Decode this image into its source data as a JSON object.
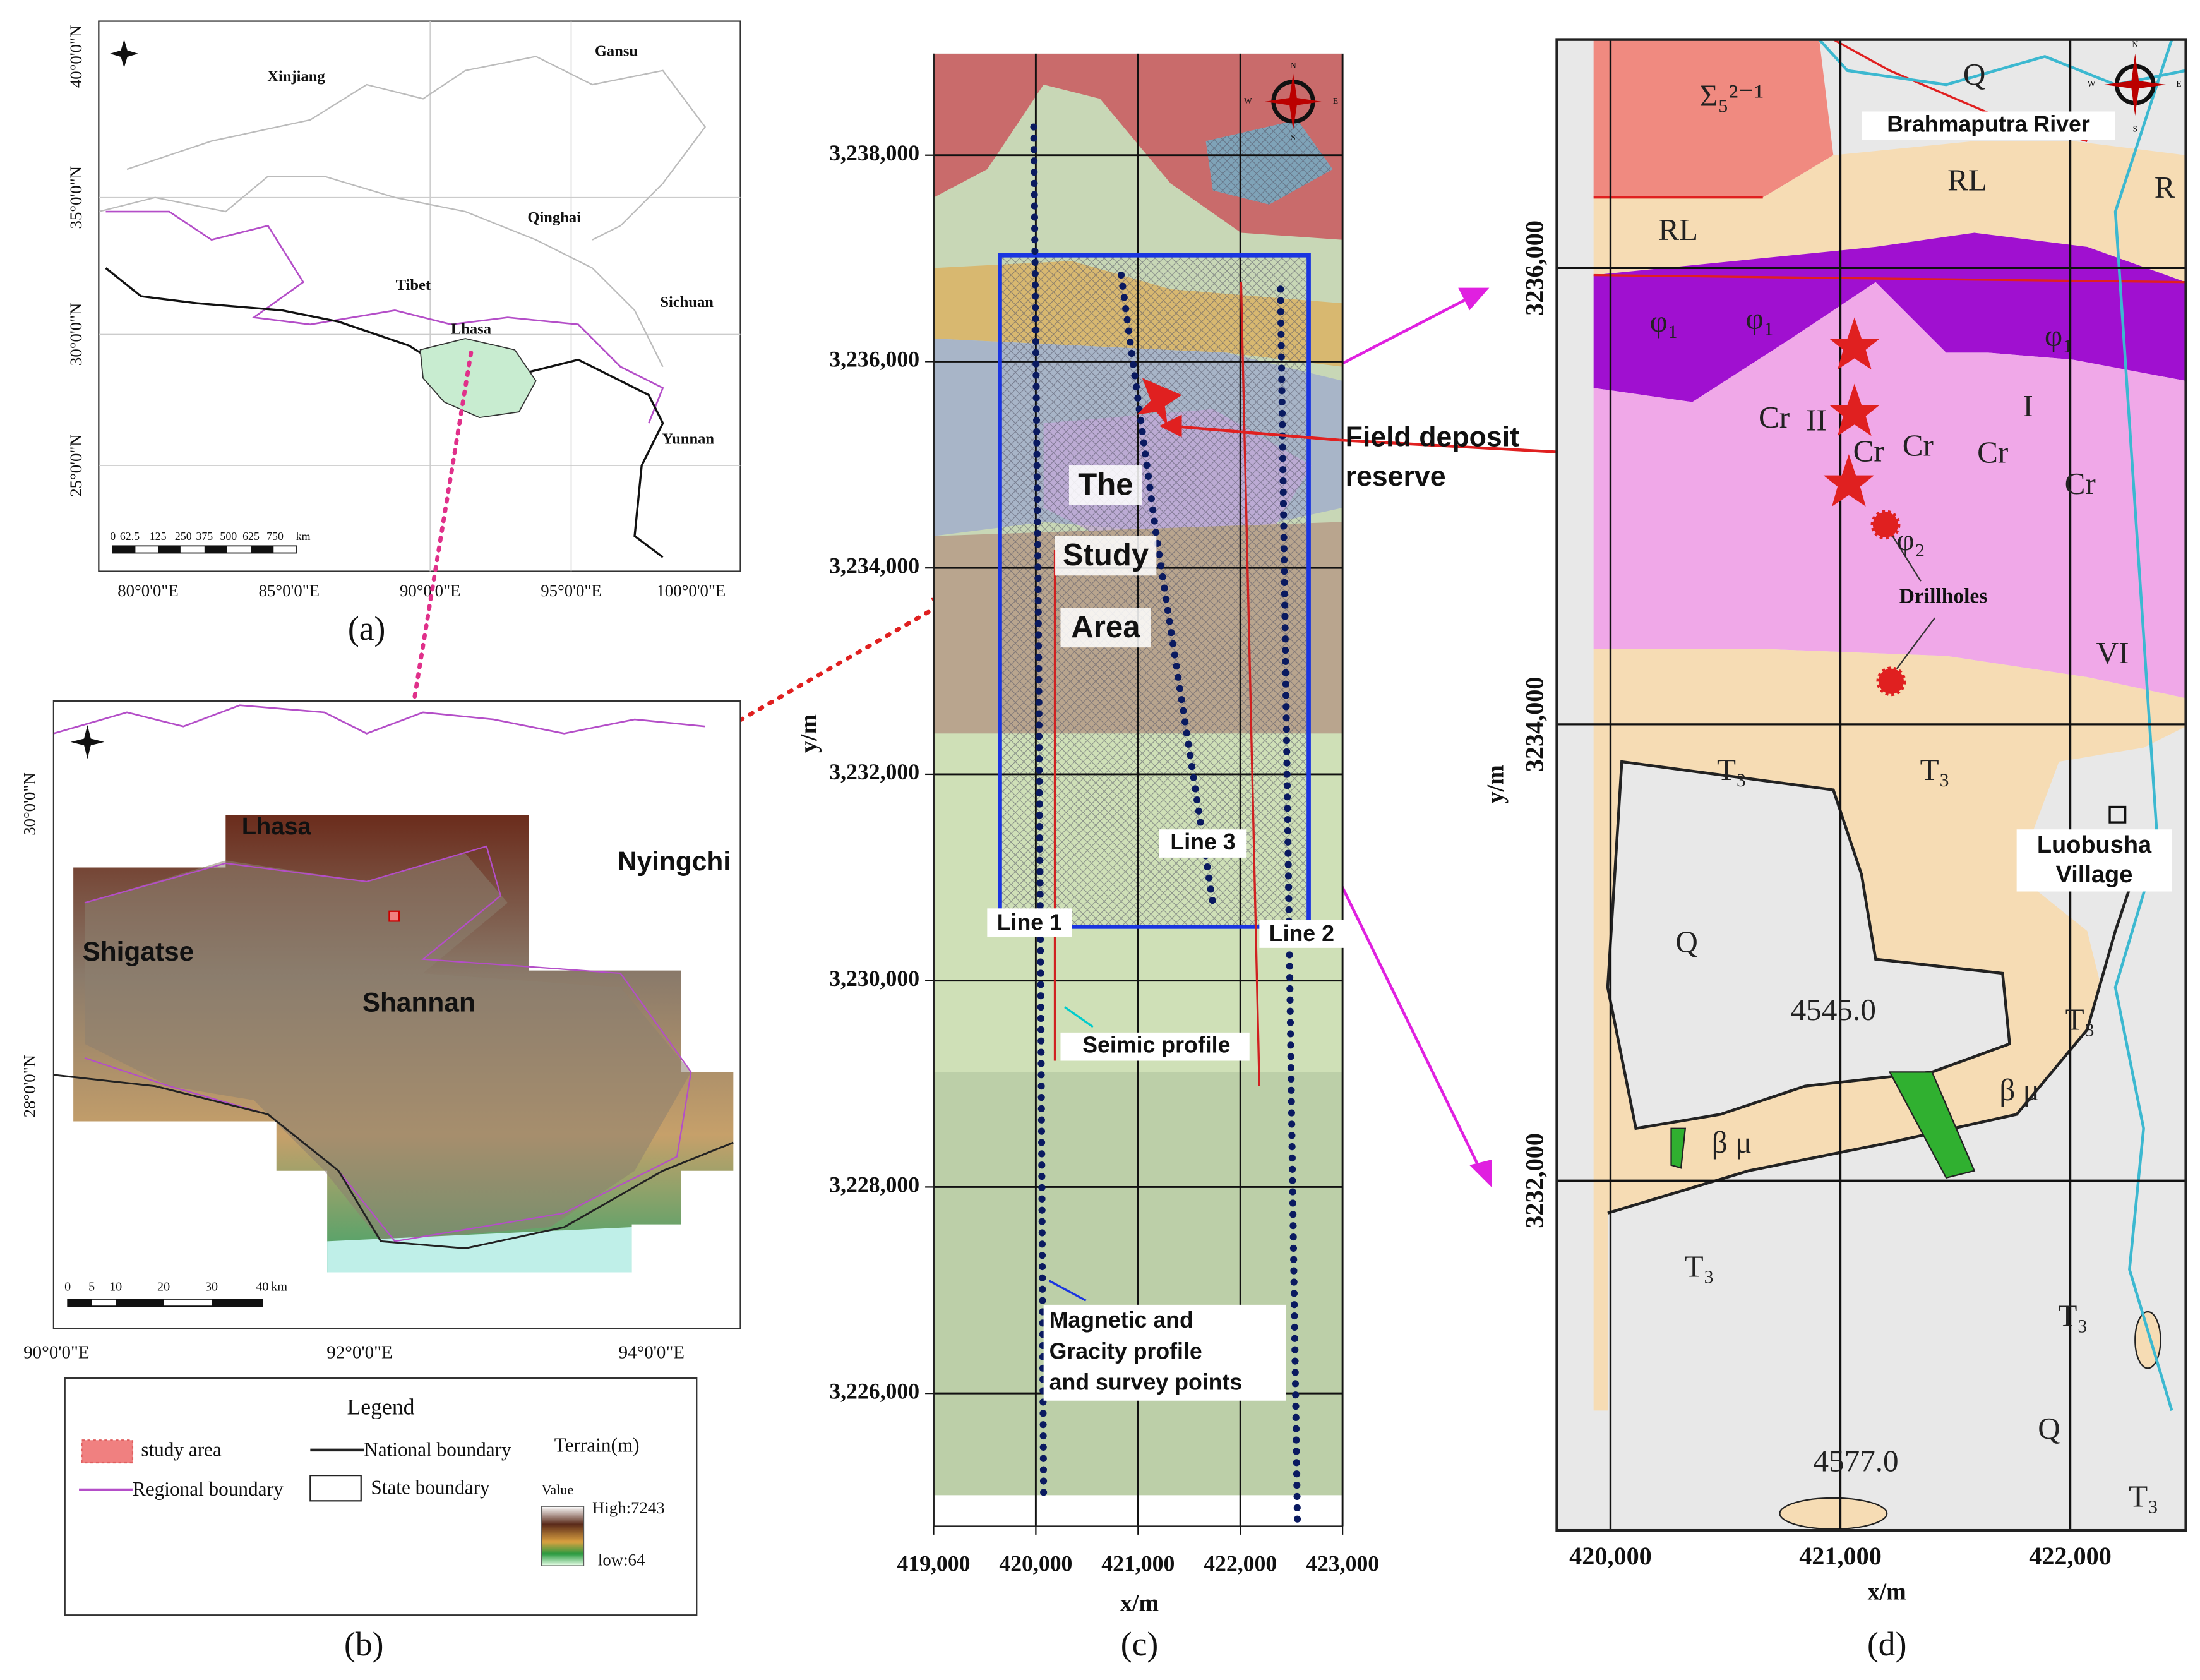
{
  "panel_a": {
    "caption": "(a)",
    "latitude_labels": [
      "40°0'0\"N",
      "35°0'0\"N",
      "30°0'0\"N",
      "25°0'0\"N"
    ],
    "longitude_labels": [
      "80°0'0\"E",
      "85°0'0\"E",
      "90°0'0\"E",
      "95°0'0\"E",
      "100°0'0\"E"
    ],
    "places": [
      "Xinjiang",
      "Gansu",
      "Qinghai",
      "Tibet",
      "Lhasa",
      "Sichuan",
      "Yunnan"
    ],
    "scale_bar": [
      "0",
      "62.5",
      "125",
      "250",
      "375",
      "500",
      "625",
      "750",
      "km"
    ]
  },
  "panel_b": {
    "caption": "(b)",
    "latitude_labels": [
      "30°0'0\"N",
      "28°0'0\"N"
    ],
    "longitude_labels": [
      "90°0'0\"E",
      "92°0'0\"E",
      "94°0'0\"E"
    ],
    "places": [
      "Lhasa",
      "Nyingchi",
      "Shigatse",
      "Shannan"
    ],
    "scale_bar": [
      "0",
      "5",
      "10",
      "20",
      "30",
      "40",
      "km"
    ],
    "legend": {
      "title": "Legend",
      "study_area": "study  area",
      "national_boundary": "National  boundary",
      "terrain": "Terrain(m)",
      "regional_boundary": "Regional  boundary",
      "state_boundary": "State  boundary",
      "value": "Value",
      "high": "High:7243",
      "low": "low:64"
    }
  },
  "panel_c": {
    "caption": "(c)",
    "x_label": "x/m",
    "y_label": "y/m",
    "x_ticks": [
      "419,000",
      "420,000",
      "421,000",
      "422,000",
      "423,000"
    ],
    "y_ticks": [
      "3,238,000",
      "3,236,000",
      "3,234,000",
      "3,232,000",
      "3,230,000",
      "3,228,000",
      "3,226,000"
    ],
    "study_area": [
      "The",
      "Study",
      "Area"
    ],
    "lines": [
      "Line 1",
      "Line 2",
      "Line 3"
    ],
    "seismic": "Seimic profile",
    "survey": [
      "Magnetic and",
      "Gracity profile",
      "and survey points"
    ],
    "deposit": [
      "Field deposit",
      "reserve"
    ],
    "compass": [
      "N",
      "W",
      "E",
      "S"
    ]
  },
  "panel_d": {
    "caption": "(d)",
    "x_label": "x/m",
    "y_label": "y/m",
    "x_ticks": [
      "420,000",
      "421,000",
      "422,000"
    ],
    "y_ticks": [
      "3236,000",
      "3234,000",
      "3232,000"
    ],
    "river": "Brahmaputra River",
    "village": [
      "Luobusha",
      "Village"
    ],
    "drillholes": "Drillholes",
    "compass": [
      "N",
      "W",
      "E",
      "S"
    ],
    "units": [
      "Σ₅²⁻¹",
      "Q",
      "RL",
      "RL",
      "R",
      "φ₁",
      "φ₁",
      "φ₁",
      "II",
      "Cr",
      "Cr",
      "Cr",
      "Cr",
      "I",
      "Cr",
      "φ₂",
      "VI",
      "T₃",
      "T₃",
      "Q",
      "4545.0",
      "T₃",
      "β μ",
      "β μ",
      "T₃",
      "T₃",
      "Q",
      "4577.0",
      "T₃"
    ]
  }
}
